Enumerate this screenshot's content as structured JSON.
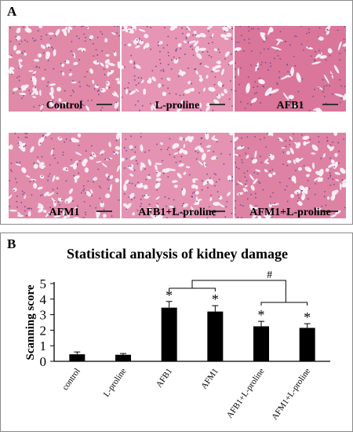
{
  "panel_a": {
    "letter": "A",
    "micrographs": [
      {
        "label": "Control",
        "color": "#e08aa8",
        "pattern": "tubular"
      },
      {
        "label": "L-proline",
        "color": "#e695b4",
        "pattern": "tubular"
      },
      {
        "label": "AFB1",
        "color": "#d9769a",
        "pattern": "damaged"
      },
      {
        "label": "AFM1",
        "color": "#e28cab",
        "pattern": "tubular"
      },
      {
        "label": "AFB1+L-proline",
        "color": "#e493b2",
        "pattern": "tubular"
      },
      {
        "label": "AFM1+L-proline",
        "color": "#dd82a3",
        "pattern": "mixed"
      }
    ]
  },
  "panel_b": {
    "letter": "B"
  },
  "chart_data": {
    "type": "bar",
    "title": "Statistical analysis of kidney damage",
    "xlabel": "",
    "ylabel": "Scanning score",
    "ylim": [
      0,
      5
    ],
    "yticks": [
      0,
      1,
      2,
      3,
      4,
      5
    ],
    "categories": [
      "control",
      "L-proline",
      "AFB1",
      "AFM1",
      "AFB1+L-proline",
      "AFM1+L-proline"
    ],
    "values": [
      0.45,
      0.42,
      3.45,
      3.2,
      2.25,
      2.15
    ],
    "errors": [
      0.15,
      0.08,
      0.4,
      0.38,
      0.32,
      0.27
    ],
    "bar_color": "#000000",
    "significance": [
      {
        "index": 2,
        "mark": "*"
      },
      {
        "index": 3,
        "mark": "*"
      },
      {
        "index": 4,
        "mark": "*"
      },
      {
        "index": 5,
        "mark": "*"
      }
    ],
    "bracket_mark": "#"
  }
}
